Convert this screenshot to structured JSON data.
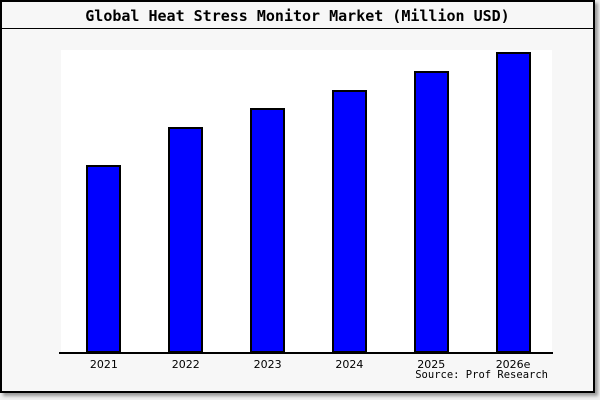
{
  "title": "Global Heat Stress Monitor Market (Million USD)",
  "source_note": "Source: Prof Research",
  "colors": {
    "bar_fill": "#0000ff",
    "bar_edge": "#000000",
    "axis": "#000000",
    "page_bg": "#f7f7f7",
    "plot_bg": "#ffffff",
    "frame_border": "#000000"
  },
  "chart_data": {
    "type": "bar",
    "title": "Global Heat Stress Monitor Market (Million USD)",
    "categories": [
      "2021",
      "2022",
      "2023",
      "2024",
      "2025",
      "2026e"
    ],
    "values": [
      100,
      120,
      130,
      140,
      150,
      160
    ],
    "xlabel": "",
    "ylabel": "",
    "ylim": [
      0,
      161
    ],
    "y_axis_visible": false,
    "grid": false,
    "legend": false,
    "bar_color": "#0000ff",
    "bar_edge_color": "#000000"
  }
}
